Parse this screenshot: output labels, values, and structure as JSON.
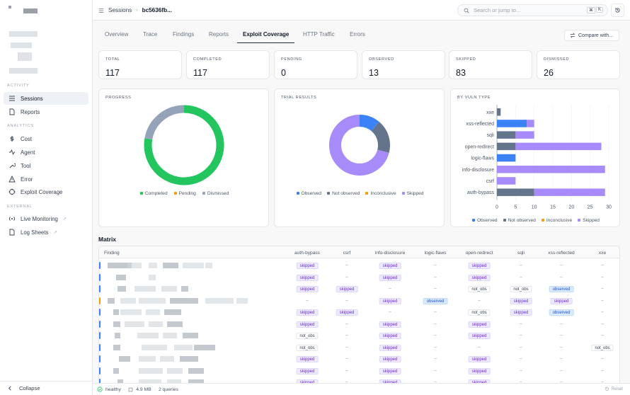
{
  "app": {
    "title": "",
    "collapse_label": "Collapse"
  },
  "sidebar": {
    "sections": [
      {
        "label": "ACTIVITY",
        "items": [
          {
            "label": "Sessions",
            "icon": "list-icon",
            "active": true
          },
          {
            "label": "Reports",
            "icon": "document-icon"
          }
        ]
      },
      {
        "label": "ANALYTICS",
        "items": [
          {
            "label": "Cost",
            "icon": "dollar-icon"
          },
          {
            "label": "Agent",
            "icon": "activity-icon"
          },
          {
            "label": "Tool",
            "icon": "wrench-icon"
          },
          {
            "label": "Error",
            "icon": "alert-icon"
          },
          {
            "label": "Exploit Coverage",
            "icon": "target-icon"
          }
        ]
      },
      {
        "label": "EXTERNAL",
        "items": [
          {
            "label": "Live Monitoring",
            "icon": "broadcast-icon",
            "external": true
          },
          {
            "label": "Log Sheets",
            "icon": "sheet-icon",
            "external": true
          }
        ]
      }
    ]
  },
  "topbar": {
    "breadcrumb_root": "Sessions",
    "breadcrumb_sep": "›",
    "session_id": "bc5636fb...",
    "search_placeholder": "Search or jump to...",
    "kbd_cmd": "⌘",
    "kbd_k": "K"
  },
  "tabs": [
    "Overview",
    "Trace",
    "Findings",
    "Reports",
    "Exploit Coverage",
    "HTTP Traffic",
    "Errors"
  ],
  "active_tab": "Exploit Coverage",
  "compare_label": "Compare with...",
  "stats": [
    {
      "label": "TOTAL",
      "value": "117"
    },
    {
      "label": "COMPLETED",
      "value": "117"
    },
    {
      "label": "PENDING",
      "value": "0"
    },
    {
      "label": "OBSERVED",
      "value": "13"
    },
    {
      "label": "SKIPPED",
      "value": "83"
    },
    {
      "label": "DISMISSED",
      "value": "26"
    }
  ],
  "progress": {
    "title": "PROGRESS",
    "legend": [
      "Completed",
      "Pending",
      "Dismissed"
    ],
    "colors": [
      "#22c55e",
      "#f59e0b",
      "#94a3b8"
    ],
    "values": [
      91,
      0,
      26
    ]
  },
  "trial": {
    "title": "TRIAL RESULTS",
    "legend": [
      "Observed",
      "Not observed",
      "Inconclusive",
      "Skipped"
    ],
    "colors": [
      "#3b82f6",
      "#64748b",
      "#f59e0b",
      "#a78bfa"
    ],
    "values": [
      13,
      21,
      0,
      83
    ]
  },
  "chart_data": {
    "type": "bar",
    "title": "BY VULN TYPE",
    "categories": [
      "xxe",
      "xss-reflected",
      "sqli",
      "open-redirect",
      "logic-flaws",
      "info-disclosure",
      "csrf",
      "auth-bypass"
    ],
    "series": [
      {
        "name": "Observed",
        "color": "#3b82f6",
        "values": [
          0,
          8,
          0,
          0,
          5,
          0,
          0,
          0
        ]
      },
      {
        "name": "Not observed",
        "color": "#64748b",
        "values": [
          1,
          0,
          5,
          5,
          0,
          0,
          0,
          10
        ]
      },
      {
        "name": "Inconclusive",
        "color": "#f59e0b",
        "values": [
          0,
          0,
          0,
          0,
          0,
          0,
          0,
          0
        ]
      },
      {
        "name": "Skipped",
        "color": "#a78bfa",
        "values": [
          0,
          2,
          5,
          23,
          0,
          29,
          5,
          19
        ]
      }
    ],
    "xticks": [
      "0",
      "5",
      "10",
      "15",
      "20",
      "25",
      "30"
    ],
    "xlim": [
      0,
      30
    ],
    "legend": "bottom",
    "stacked": true
  },
  "matrix": {
    "title": "Matrix",
    "columns": [
      "Finding",
      "auth-bypass",
      "csrf",
      "info-disclosure",
      "logic-flaws",
      "open-redirect",
      "sqli",
      "xss-reflected",
      "xxe"
    ],
    "rows": [
      {
        "accent": "#3b82f6",
        "cells": [
          "skipped",
          "–",
          "skipped",
          "–",
          "skipped",
          "–",
          "–",
          "–"
        ]
      },
      {
        "accent": "#3b82f6",
        "cells": [
          "skipped",
          "–",
          "skipped",
          "–",
          "skipped",
          "–",
          "–",
          "–"
        ]
      },
      {
        "accent": "#3b82f6",
        "cells": [
          "skipped",
          "skipped",
          "–",
          "–",
          "not_obs",
          "not_obs",
          "observed",
          "–"
        ]
      },
      {
        "accent": "#f59e0b",
        "cells": [
          "–",
          "–",
          "skipped",
          "observed",
          "–",
          "skipped",
          "skipped",
          "–"
        ]
      },
      {
        "accent": "#3b82f6",
        "cells": [
          "skipped",
          "skipped",
          "–",
          "–",
          "not_obs",
          "skipped",
          "observed",
          "–"
        ]
      },
      {
        "accent": "#3b82f6",
        "cells": [
          "skipped",
          "–",
          "skipped",
          "–",
          "skipped",
          "–",
          "–",
          "–"
        ]
      },
      {
        "accent": "#3b82f6",
        "cells": [
          "not_obs",
          "–",
          "skipped",
          "–",
          "skipped",
          "–",
          "–",
          "–"
        ]
      },
      {
        "accent": "#3b82f6",
        "cells": [
          "not_obs",
          "–",
          "skipped",
          "–",
          "–",
          "–",
          "–",
          "not_obs"
        ]
      },
      {
        "accent": "#3b82f6",
        "cells": [
          "skipped",
          "–",
          "skipped",
          "–",
          "skipped",
          "–",
          "–",
          "–"
        ]
      },
      {
        "accent": "#3b82f6",
        "cells": [
          "skipped",
          "–",
          "skipped",
          "–",
          "skipped",
          "–",
          "–",
          "–"
        ]
      },
      {
        "accent": "#3b82f6",
        "cells": [
          "skipped",
          "–",
          "skipped",
          "–",
          "skipped",
          "–",
          "–",
          "–"
        ]
      }
    ]
  },
  "status": {
    "health": "healthy",
    "memory": "4.9 MB",
    "queries": "2 queries",
    "sep": "·",
    "reset": "Reset"
  }
}
